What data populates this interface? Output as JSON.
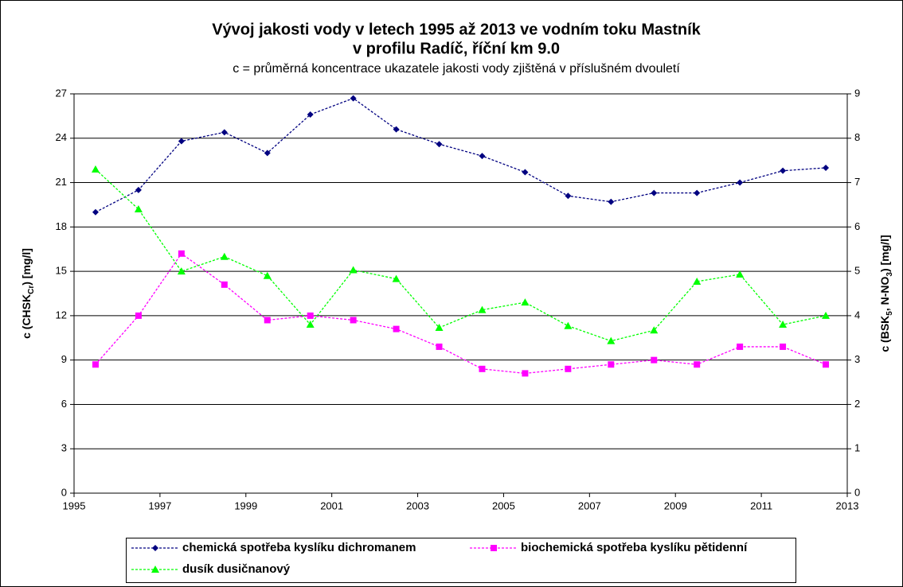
{
  "chart_data": {
    "type": "line",
    "title": [
      "Vývoj jakosti vody v letech 1995 až 2013 ve vodním toku Mastník",
      "v profilu Radíč, říční km 9.0"
    ],
    "subtitle": "c = průměrná koncentrace ukazatele jakosti vody zjištěná v příslušném dvouletí",
    "ylabel": [
      "c (CHSK",
      "Cr",
      ") [mg/l]"
    ],
    "y2label": [
      "c (BSK",
      "5",
      ", N-NO",
      "3",
      ") [mg/l]"
    ],
    "x": [
      1995.5,
      1996.5,
      1997.5,
      1998.5,
      1999.5,
      2000.5,
      2001.5,
      2002.5,
      2003.5,
      2004.5,
      2005.5,
      2006.5,
      2007.5,
      2008.5,
      2009.5,
      2010.5,
      2011.5,
      2012.5
    ],
    "xlim": [
      1995,
      2013
    ],
    "xticks": [
      1995,
      1997,
      1999,
      2001,
      2003,
      2005,
      2007,
      2009,
      2011,
      2013
    ],
    "ylim": [
      0,
      27
    ],
    "yticks": [
      0,
      3,
      6,
      9,
      12,
      15,
      18,
      21,
      24,
      27
    ],
    "y2lim": [
      0,
      9
    ],
    "y2ticks": [
      0,
      1,
      2,
      3,
      4,
      5,
      6,
      7,
      8,
      9
    ],
    "grid": true,
    "legend": "bottom",
    "series": [
      {
        "name": "chemická spotřeba kyslíku dichromanem",
        "color": "#000080",
        "marker": "diamond",
        "values": [
          19.0,
          20.5,
          23.8,
          24.4,
          23.0,
          25.6,
          26.7,
          24.6,
          23.6,
          22.8,
          21.7,
          20.1,
          19.7,
          20.3,
          20.3,
          21.0,
          21.8,
          22.0
        ]
      },
      {
        "name": "biochemická spotřeba kyslíku pětidenní",
        "color": "#ff00ff",
        "marker": "square",
        "axis": "y2",
        "values": [
          2.9,
          4.0,
          5.4,
          4.7,
          3.9,
          4.0,
          3.9,
          3.7,
          3.3,
          2.8,
          2.7,
          2.8,
          2.9,
          3.0,
          2.9,
          3.3,
          3.3,
          2.9
        ]
      },
      {
        "name": "dusík dusičnanový",
        "color": "#00ff00",
        "marker": "triangle",
        "axis": "y2",
        "values": [
          7.3,
          6.4,
          5.0,
          5.33,
          4.9,
          3.8,
          5.03,
          4.83,
          3.73,
          4.13,
          4.3,
          3.77,
          3.43,
          3.67,
          4.77,
          4.93,
          3.8,
          4.0
        ]
      }
    ]
  }
}
